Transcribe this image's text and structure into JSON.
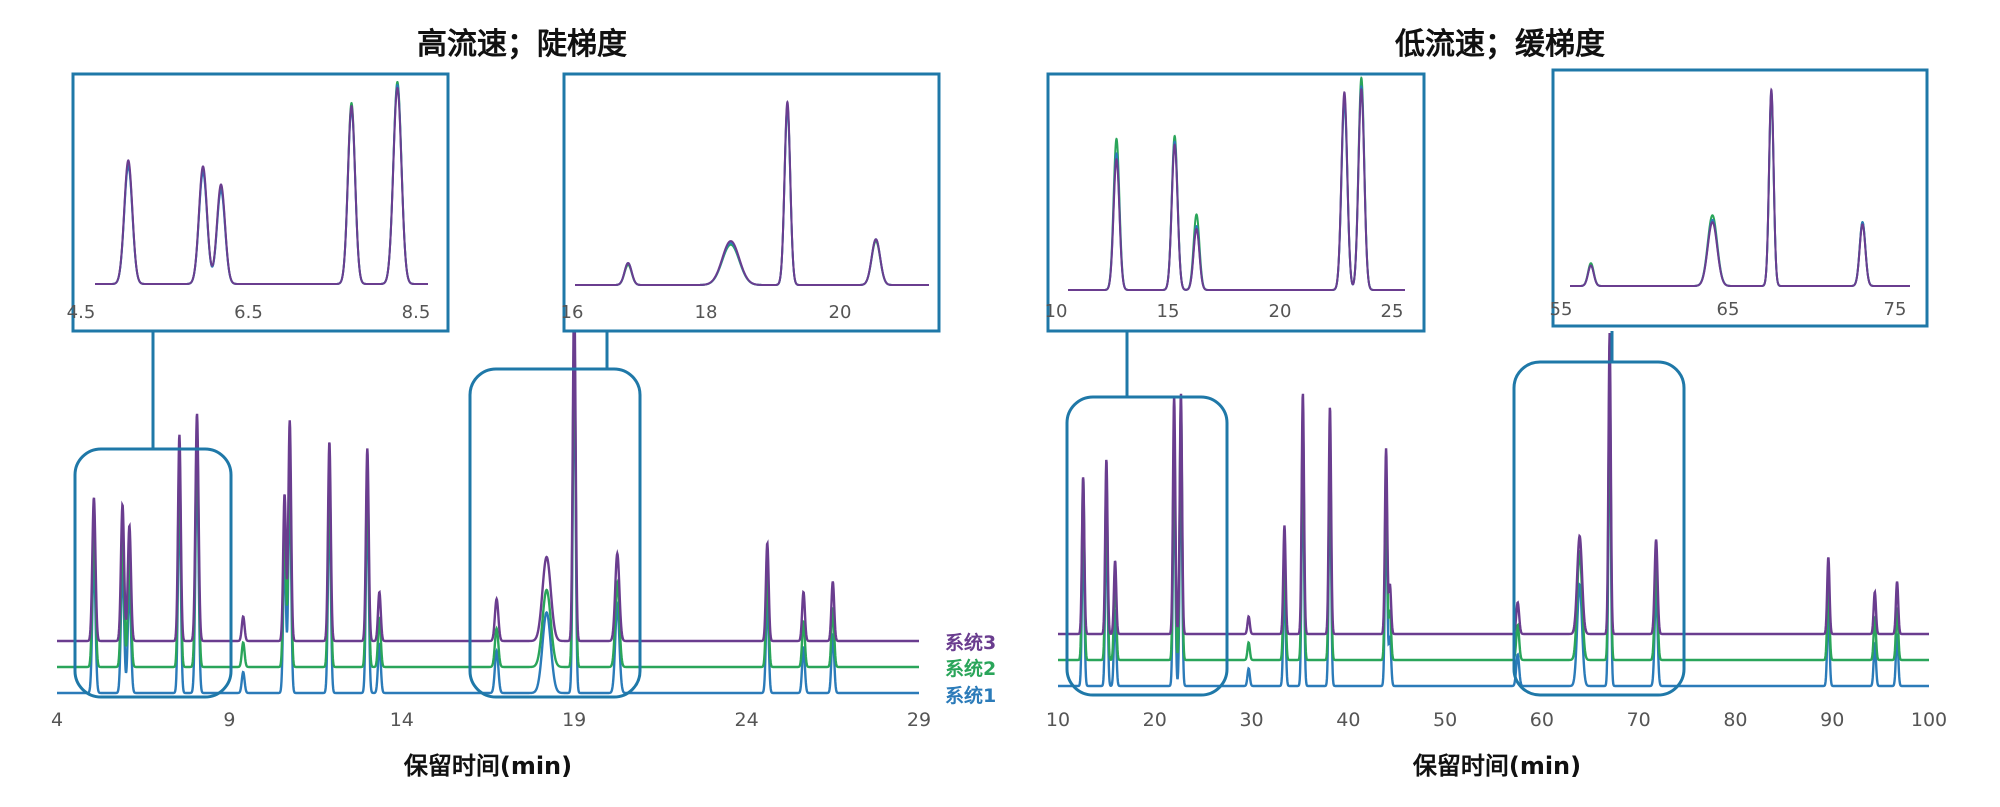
{
  "colors": {
    "box": "#1f78a8",
    "baseline": "#555555"
  },
  "chart_data": [
    {
      "type": "line",
      "title": "高流速；陡梯度",
      "xlabel": "保留时间(min)",
      "xlim": [
        4,
        29
      ],
      "xticks": [
        4,
        9,
        14,
        19,
        24,
        29
      ],
      "series": [
        {
          "name": "系统3",
          "color": "#6a3d8f"
        },
        {
          "name": "系统2",
          "color": "#2aa55a"
        },
        {
          "name": "系统1",
          "color": "#2b7bb9"
        }
      ],
      "peaks": [
        {
          "x": 5.07,
          "h": [
            0.41,
            0.4,
            0.39
          ],
          "w": 0.045
        },
        {
          "x": 5.9,
          "h": [
            0.39,
            0.38,
            0.37
          ],
          "w": 0.045
        },
        {
          "x": 6.1,
          "h": [
            0.33,
            0.32,
            0.31
          ],
          "w": 0.045
        },
        {
          "x": 7.55,
          "h": [
            0.59,
            0.6,
            0.58
          ],
          "w": 0.04
        },
        {
          "x": 8.06,
          "h": [
            0.65,
            0.67,
            0.66
          ],
          "w": 0.045
        },
        {
          "x": 9.4,
          "h": [
            0.07,
            0.07,
            0.06
          ],
          "w": 0.04
        },
        {
          "x": 10.6,
          "h": [
            0.42,
            0.42,
            0.41
          ],
          "w": 0.04
        },
        {
          "x": 10.75,
          "h": [
            0.63,
            0.62,
            0.62
          ],
          "w": 0.04
        },
        {
          "x": 11.9,
          "h": [
            0.57,
            0.57,
            0.56
          ],
          "w": 0.04
        },
        {
          "x": 13.0,
          "h": [
            0.55,
            0.57,
            0.56
          ],
          "w": 0.04
        },
        {
          "x": 13.35,
          "h": [
            0.14,
            0.14,
            0.14
          ],
          "w": 0.04
        },
        {
          "x": 16.75,
          "h": [
            0.12,
            0.11,
            0.12
          ],
          "w": 0.05
        },
        {
          "x": 18.2,
          "h": [
            0.24,
            0.22,
            0.23
          ],
          "w": 0.12
        },
        {
          "x": 19.0,
          "h": [
            1.0,
            0.98,
            0.97
          ],
          "w": 0.04
        },
        {
          "x": 20.25,
          "h": [
            0.25,
            0.24,
            0.25
          ],
          "w": 0.06
        },
        {
          "x": 24.6,
          "h": [
            0.28,
            0.27,
            0.27
          ],
          "w": 0.04
        },
        {
          "x": 25.65,
          "h": [
            0.14,
            0.13,
            0.13
          ],
          "w": 0.04
        },
        {
          "x": 26.5,
          "h": [
            0.17,
            0.17,
            0.17
          ],
          "w": 0.04
        }
      ],
      "insets": [
        {
          "xlim": [
            4.5,
            8.5
          ],
          "xticks": [
            4.5,
            6.5,
            8.5
          ],
          "zoom": [
            4.7,
            8.4
          ]
        },
        {
          "xlim": [
            16,
            21
          ],
          "xticks": [
            16,
            18,
            20
          ],
          "zoom": [
            16.0,
            21.0
          ]
        }
      ]
    },
    {
      "type": "line",
      "title": "低流速；缓梯度",
      "xlabel": "保留时间(min)",
      "xlim": [
        10,
        100
      ],
      "xticks": [
        10,
        20,
        30,
        40,
        50,
        60,
        70,
        80,
        90,
        100
      ],
      "series": [
        {
          "name": "系统3",
          "color": "#6a3d8f"
        },
        {
          "name": "系统2",
          "color": "#2aa55a"
        },
        {
          "name": "系统1",
          "color": "#2b7bb9"
        }
      ],
      "peaks": [
        {
          "x": 12.6,
          "h": [
            0.45,
            0.52,
            0.47
          ],
          "w": 0.12
        },
        {
          "x": 15.0,
          "h": [
            0.5,
            0.53,
            0.51
          ],
          "w": 0.12
        },
        {
          "x": 15.9,
          "h": [
            0.21,
            0.26,
            0.22
          ],
          "w": 0.12
        },
        {
          "x": 22.0,
          "h": [
            0.68,
            0.66,
            0.65
          ],
          "w": 0.12
        },
        {
          "x": 22.7,
          "h": [
            0.69,
            0.73,
            0.7
          ],
          "w": 0.12
        },
        {
          "x": 29.7,
          "h": [
            0.05,
            0.05,
            0.05
          ],
          "w": 0.12
        },
        {
          "x": 33.4,
          "h": [
            0.31,
            0.32,
            0.31
          ],
          "w": 0.12
        },
        {
          "x": 35.3,
          "h": [
            0.69,
            0.68,
            0.68
          ],
          "w": 0.12
        },
        {
          "x": 38.1,
          "h": [
            0.65,
            0.64,
            0.64
          ],
          "w": 0.12
        },
        {
          "x": 43.9,
          "h": [
            0.53,
            0.54,
            0.53
          ],
          "w": 0.12
        },
        {
          "x": 44.3,
          "h": [
            0.14,
            0.14,
            0.14
          ],
          "w": 0.12
        },
        {
          "x": 57.5,
          "h": [
            0.09,
            0.1,
            0.09
          ],
          "w": 0.15
        },
        {
          "x": 63.9,
          "h": [
            0.28,
            0.31,
            0.29
          ],
          "w": 0.25
        },
        {
          "x": 67.0,
          "h": [
            0.86,
            0.83,
            0.85
          ],
          "w": 0.12
        },
        {
          "x": 71.8,
          "h": [
            0.27,
            0.28,
            0.28
          ],
          "w": 0.15
        },
        {
          "x": 89.6,
          "h": [
            0.22,
            0.22,
            0.22
          ],
          "w": 0.12
        },
        {
          "x": 94.4,
          "h": [
            0.12,
            0.12,
            0.12
          ],
          "w": 0.12
        },
        {
          "x": 96.7,
          "h": [
            0.15,
            0.15,
            0.15
          ],
          "w": 0.12
        }
      ],
      "insets": [
        {
          "xlim": [
            10,
            25
          ],
          "xticks": [
            10,
            15,
            20,
            25
          ],
          "zoom": [
            10.6,
            24.5
          ]
        },
        {
          "xlim": [
            55,
            75
          ],
          "xticks": [
            55,
            65,
            75
          ],
          "zoom": [
            56.4,
            74.3
          ]
        }
      ]
    }
  ]
}
